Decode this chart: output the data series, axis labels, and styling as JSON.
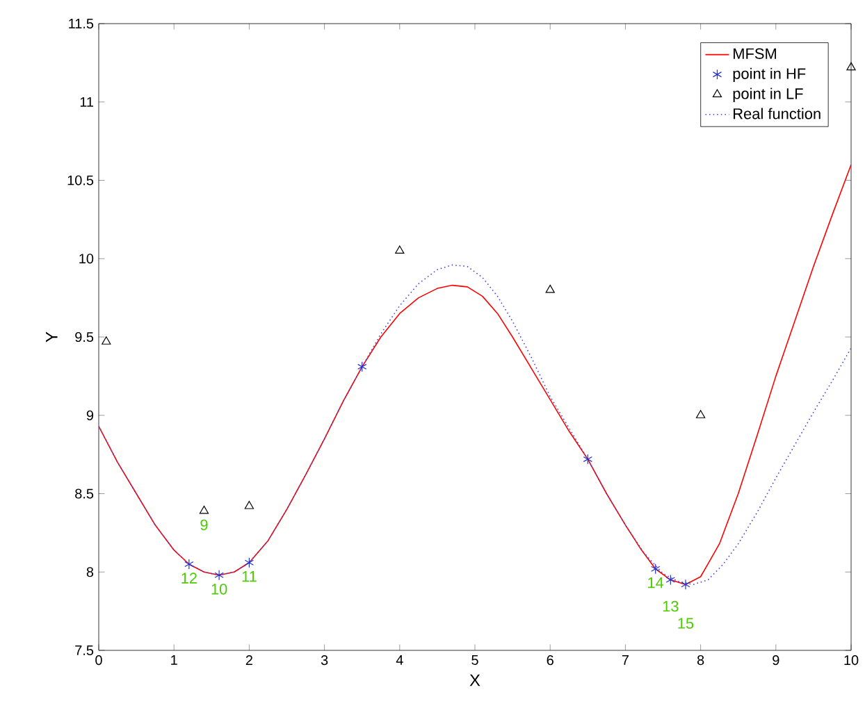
{
  "chart_data": {
    "type": "line",
    "xlabel": "X",
    "ylabel": "Y",
    "xlim": [
      0,
      10
    ],
    "ylim": [
      7.5,
      11.5
    ],
    "xticks": [
      0,
      1,
      2,
      3,
      4,
      5,
      6,
      7,
      8,
      9,
      10
    ],
    "yticks": [
      7.5,
      8,
      8.5,
      9,
      9.5,
      10,
      10.5,
      11,
      11.5
    ],
    "legend": "top right",
    "grid": false,
    "series": [
      {
        "name": "MFSM",
        "color": "#ff0000",
        "marker": "none",
        "line_style": "solid",
        "x": [
          0,
          0.25,
          0.5,
          0.75,
          1.0,
          1.2,
          1.4,
          1.6,
          1.8,
          2.0,
          2.25,
          2.5,
          2.75,
          3.0,
          3.25,
          3.5,
          3.75,
          4.0,
          4.25,
          4.5,
          4.7,
          4.9,
          5.1,
          5.3,
          5.5,
          5.75,
          6.0,
          6.25,
          6.5,
          6.75,
          7.0,
          7.2,
          7.4,
          7.6,
          7.8,
          8.0,
          8.25,
          8.5,
          8.75,
          9.0,
          9.25,
          9.5,
          9.75,
          10.0
        ],
        "values": [
          8.93,
          8.7,
          8.5,
          8.3,
          8.14,
          8.05,
          8.0,
          7.98,
          8.0,
          8.06,
          8.2,
          8.4,
          8.62,
          8.85,
          9.09,
          9.31,
          9.5,
          9.65,
          9.75,
          9.81,
          9.83,
          9.82,
          9.76,
          9.65,
          9.5,
          9.3,
          9.1,
          8.9,
          8.72,
          8.5,
          8.3,
          8.15,
          8.02,
          7.95,
          7.92,
          7.97,
          8.18,
          8.5,
          8.87,
          9.25,
          9.6,
          9.95,
          10.28,
          10.6
        ]
      },
      {
        "name": "point in HF",
        "type": "scatter",
        "color": "#2233cc",
        "marker": "cross",
        "x": [
          1.2,
          1.6,
          2.0,
          3.5,
          6.5,
          7.4,
          7.6,
          7.8
        ],
        "values": [
          8.05,
          7.98,
          8.06,
          9.31,
          8.72,
          8.02,
          7.95,
          7.92
        ]
      },
      {
        "name": "point in LF",
        "type": "scatter",
        "color": "#000000",
        "marker": "triangle",
        "x": [
          0.1,
          1.4,
          2.0,
          4.0,
          6.0,
          8.0,
          10.0
        ],
        "values": [
          9.47,
          8.39,
          8.42,
          10.05,
          9.8,
          9.0,
          11.22
        ]
      },
      {
        "name": "Real function",
        "color": "#4444dd",
        "marker": "none",
        "line_style": "dotted",
        "x": [
          0,
          0.25,
          0.5,
          0.75,
          1.0,
          1.2,
          1.4,
          1.6,
          1.8,
          2.0,
          2.25,
          2.5,
          2.75,
          3.0,
          3.25,
          3.5,
          3.75,
          4.0,
          4.25,
          4.5,
          4.7,
          4.9,
          5.1,
          5.3,
          5.5,
          5.75,
          6.0,
          6.25,
          6.5,
          6.75,
          7.0,
          7.25,
          7.5,
          7.7,
          7.9,
          8.1,
          8.3,
          8.5,
          8.75,
          9.0,
          9.25,
          9.5,
          9.75,
          10.0
        ],
        "values": [
          8.93,
          8.7,
          8.5,
          8.3,
          8.14,
          8.05,
          8.0,
          7.98,
          8.0,
          8.06,
          8.2,
          8.4,
          8.62,
          8.85,
          9.09,
          9.31,
          9.52,
          9.7,
          9.84,
          9.93,
          9.96,
          9.95,
          9.88,
          9.76,
          9.6,
          9.37,
          9.12,
          8.92,
          8.72,
          8.5,
          8.3,
          8.12,
          7.99,
          7.94,
          7.92,
          7.95,
          8.05,
          8.18,
          8.38,
          8.6,
          8.81,
          9.02,
          9.22,
          9.43
        ]
      }
    ],
    "annotations": [
      {
        "text": "9",
        "x": 1.4,
        "y": 8.39
      },
      {
        "text": "12",
        "x": 1.2,
        "y": 8.05
      },
      {
        "text": "10",
        "x": 1.6,
        "y": 7.98
      },
      {
        "text": "11",
        "x": 2.0,
        "y": 8.06
      },
      {
        "text": "14",
        "x": 7.4,
        "y": 8.02
      },
      {
        "text": "13",
        "x": 7.6,
        "y": 7.95
      },
      {
        "text": "15",
        "x": 7.8,
        "y": 7.92
      }
    ]
  }
}
